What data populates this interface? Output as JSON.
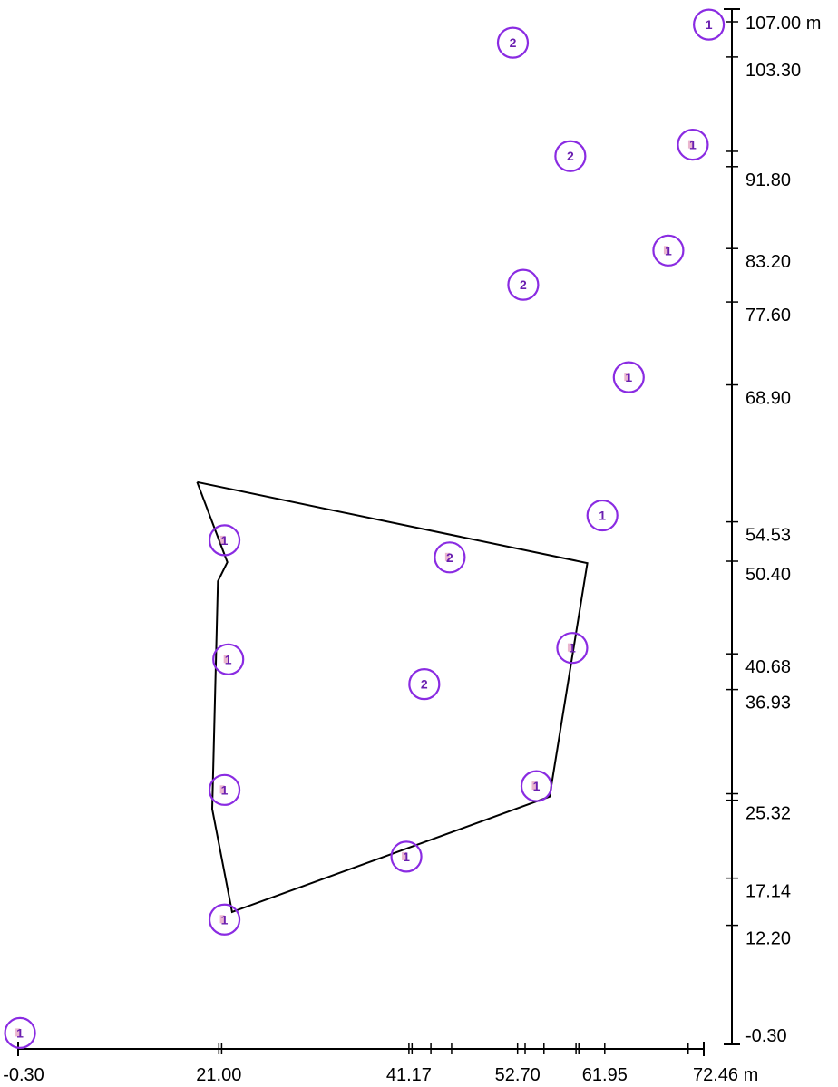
{
  "chart_data": {
    "type": "scatter",
    "title": "",
    "x_axis": {
      "range": [
        -0.3,
        72.46
      ],
      "unit": "m",
      "tick_labels": [
        "-0.30",
        "21.00",
        "41.17",
        "52.70",
        "61.95",
        "72.46 m"
      ],
      "tick_values": [
        -0.3,
        21.0,
        41.17,
        52.7,
        61.95,
        72.46
      ],
      "extra_tick_values": [
        21.3,
        41.5,
        43.5,
        45.7,
        53.5,
        55.5,
        58.9,
        59.2,
        70.8
      ]
    },
    "y_axis": {
      "range": [
        -0.3,
        107.0
      ],
      "unit": "m",
      "tick_labels": [
        "107.00 m",
        "103.30",
        "91.80",
        "83.20",
        "77.60",
        "68.90",
        "54.53",
        "50.40",
        "40.68",
        "36.93",
        "25.32",
        "17.14",
        "12.20",
        "-0.30"
      ],
      "tick_values": [
        107.0,
        103.3,
        91.8,
        83.2,
        77.6,
        68.9,
        54.53,
        50.4,
        40.68,
        36.93,
        25.32,
        17.14,
        12.2,
        -0.3
      ],
      "extra_tick_values": [
        93.4,
        26.0
      ]
    },
    "boundary_polygon": [
      [
        18.7,
        58.7
      ],
      [
        21.9,
        50.3
      ],
      [
        20.9,
        48.3
      ],
      [
        20.3,
        24.4
      ],
      [
        22.4,
        13.6
      ],
      [
        56.1,
        25.7
      ],
      [
        60.1,
        50.2
      ],
      [
        18.7,
        58.7
      ]
    ],
    "points": [
      {
        "x": -0.1,
        "y": 0.9,
        "label": "1",
        "style": "partial"
      },
      {
        "x": 73.0,
        "y": 106.7,
        "label": "1",
        "style": "full"
      },
      {
        "x": 52.2,
        "y": 104.8,
        "label": "2",
        "style": "full"
      },
      {
        "x": 71.3,
        "y": 94.1,
        "label": "1",
        "style": "partial"
      },
      {
        "x": 58.3,
        "y": 92.9,
        "label": "2",
        "style": "full"
      },
      {
        "x": 68.7,
        "y": 83.0,
        "label": "1",
        "style": "partial"
      },
      {
        "x": 53.3,
        "y": 79.4,
        "label": "2",
        "style": "full"
      },
      {
        "x": 64.5,
        "y": 69.7,
        "label": "1",
        "style": "partial"
      },
      {
        "x": 61.7,
        "y": 55.2,
        "label": "1",
        "style": "full"
      },
      {
        "x": 21.6,
        "y": 52.6,
        "label": "1",
        "style": "partial"
      },
      {
        "x": 45.5,
        "y": 50.8,
        "label": "2",
        "style": "partial"
      },
      {
        "x": 58.5,
        "y": 41.3,
        "label": "1",
        "style": "partial"
      },
      {
        "x": 22.0,
        "y": 40.1,
        "label": "1",
        "style": "partial"
      },
      {
        "x": 42.8,
        "y": 37.5,
        "label": "2",
        "style": "full"
      },
      {
        "x": 54.7,
        "y": 26.8,
        "label": "1",
        "style": "partial"
      },
      {
        "x": 21.6,
        "y": 26.4,
        "label": "1",
        "style": "partial"
      },
      {
        "x": 40.9,
        "y": 19.4,
        "label": "1",
        "style": "partial"
      },
      {
        "x": 21.6,
        "y": 12.8,
        "label": "1",
        "style": "partial"
      }
    ],
    "colors": {
      "marker": "#8a2be2",
      "marker_text": "#6a1fb0",
      "marker_text_partial": "#d97aa7",
      "axis": "#000000",
      "polygon": "#000000"
    }
  }
}
